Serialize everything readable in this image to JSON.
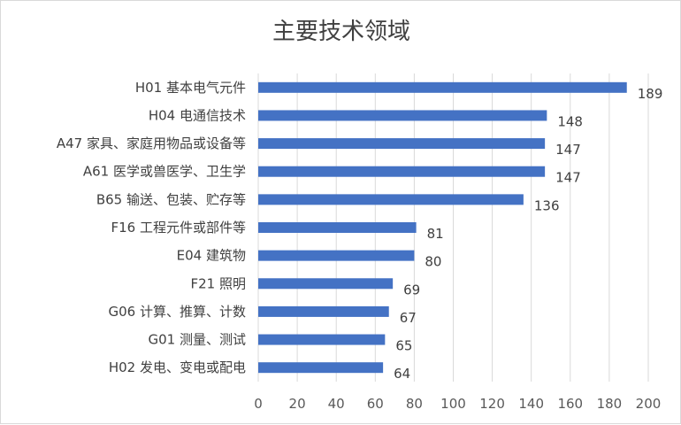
{
  "chart_data": {
    "type": "bar",
    "orientation": "horizontal",
    "title": "主要技术领域",
    "categories": [
      "H01 基本电气元件",
      "H04 电通信技术",
      "A47 家具、家庭用物品或设备等",
      "A61 医学或兽医学、卫生学",
      "B65 输送、包装、贮存等",
      "F16 工程元件或部件等",
      "E04 建筑物",
      "F21 照明",
      "G06 计算、推算、计数",
      "G01 测量、测试",
      "H02 发电、变电或配电"
    ],
    "values": [
      189,
      148,
      147,
      147,
      136,
      81,
      80,
      69,
      67,
      65,
      64
    ],
    "xlim": [
      0,
      200
    ],
    "xticks": [
      "0",
      "20",
      "40",
      "60",
      "80",
      "100",
      "120",
      "140",
      "160",
      "180",
      "200"
    ],
    "grid": true,
    "data_labels": true,
    "bar_color": "#4472c4"
  }
}
